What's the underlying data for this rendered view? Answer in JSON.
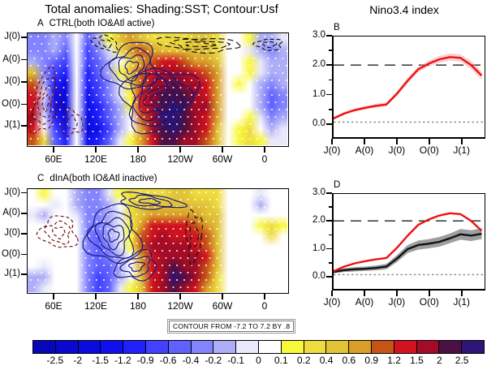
{
  "titles": {
    "main": "Total anomalies: Shading:SST; Contour:Usf",
    "right": "Nino3.4 index"
  },
  "colorbar": {
    "labels": [
      "-2.5",
      "-2",
      "-1.5",
      "-1.2",
      "-0.9",
      "-0.6",
      "-0.4",
      "-0.2",
      "-0.1",
      "0",
      "0.1",
      "0.2",
      "0.4",
      "0.6",
      "0.9",
      "1.2",
      "1.5",
      "2",
      "2.5"
    ],
    "colors": [
      "#0606bb",
      "#0808cf",
      "#0b0be0",
      "#1010ee",
      "#2020fb",
      "#4141ff",
      "#6060ff",
      "#8484ff",
      "#adadf8",
      "#e8e8fb",
      "#ffffff",
      "#f9f83b",
      "#eedc3e",
      "#e2c236",
      "#d89e27",
      "#c75417",
      "#d1131f",
      "#a30c26",
      "#4b1045",
      "#2d1476"
    ],
    "note": "CONTOUR FROM -7.2 TO 7.2 BY .8"
  },
  "chart_data": [
    {
      "id": "A",
      "type": "heatmap",
      "label": "A",
      "title": "CTRL(both IO&Atl active)",
      "x_ticks": [
        "60E",
        "120E",
        "180",
        "120W",
        "60W",
        "0"
      ],
      "y_ticks": [
        "J(0)",
        "A(0)",
        "J(0)",
        "O(0)",
        "J(1)"
      ],
      "shading_variable": "SST anomaly (shading)",
      "contour_variable": "Usf anomaly (contour)",
      "grid": [
        [
          7,
          7,
          8,
          7,
          10,
          6,
          8,
          11,
          13,
          14,
          13,
          12,
          12,
          12,
          12,
          13,
          13,
          12,
          10,
          10,
          11,
          8,
          8,
          9
        ],
        [
          7,
          7,
          8,
          6,
          10,
          5,
          7,
          9,
          12,
          14,
          15,
          14,
          13,
          13,
          13,
          13,
          13,
          12,
          10,
          10,
          9,
          8,
          7,
          8
        ],
        [
          8,
          7,
          6,
          5,
          10,
          5,
          6,
          8,
          10,
          12,
          14,
          15,
          16,
          16,
          15,
          14,
          14,
          13,
          10,
          10,
          11,
          9,
          8,
          8
        ],
        [
          13,
          7,
          5,
          4,
          10,
          4,
          6,
          8,
          11,
          13,
          15,
          16,
          17,
          17,
          17,
          16,
          15,
          14,
          10,
          10,
          11,
          9,
          8,
          8
        ],
        [
          15,
          8,
          4,
          2,
          10,
          4,
          5,
          7,
          9,
          12,
          15,
          17,
          17,
          18,
          17,
          17,
          16,
          14,
          10,
          11,
          10,
          8,
          7,
          8
        ],
        [
          16,
          9,
          3,
          2,
          10,
          3,
          5,
          7,
          9,
          11,
          16,
          17,
          18,
          18,
          18,
          17,
          16,
          14,
          10,
          10,
          10,
          8,
          6,
          7
        ],
        [
          16,
          8,
          3,
          1,
          10,
          3,
          4,
          6,
          8,
          11,
          16,
          17,
          18,
          19,
          18,
          17,
          17,
          14,
          10,
          10,
          10,
          8,
          6,
          7
        ],
        [
          17,
          9,
          4,
          2,
          10,
          2,
          4,
          6,
          8,
          10,
          15,
          17,
          19,
          19,
          18,
          17,
          16,
          14,
          10,
          10,
          11,
          9,
          7,
          8
        ],
        [
          16,
          10,
          5,
          3,
          10,
          2,
          3,
          5,
          8,
          10,
          14,
          17,
          18,
          19,
          18,
          17,
          16,
          13,
          10,
          11,
          12,
          10,
          8,
          9
        ],
        [
          15,
          12,
          6,
          4,
          10,
          3,
          4,
          6,
          9,
          11,
          14,
          16,
          18,
          18,
          17,
          17,
          15,
          13,
          10,
          11,
          12,
          11,
          9,
          9
        ]
      ],
      "contours": [
        {
          "cx": 0.4,
          "cy": 0.3,
          "rx": 0.1,
          "ry": 0.2,
          "n": 4,
          "color": "#15157e",
          "dash": null,
          "rot": -0.5
        },
        {
          "cx": 0.5,
          "cy": 0.58,
          "rx": 0.14,
          "ry": 0.27,
          "n": 6,
          "color": "#15157e",
          "dash": null,
          "rot": -0.45
        },
        {
          "cx": 0.07,
          "cy": 0.62,
          "rx": 0.05,
          "ry": 0.28,
          "n": 4,
          "color": "#6e0d0d",
          "dash": [
            4,
            3
          ],
          "rot": 0.2
        },
        {
          "cx": 0.17,
          "cy": 0.8,
          "rx": 0.04,
          "ry": 0.11,
          "n": 2,
          "color": "#6e0d0d",
          "dash": [
            4,
            3
          ],
          "rot": 0
        },
        {
          "cx": 0.66,
          "cy": 0.1,
          "rx": 0.16,
          "ry": 0.06,
          "n": 3,
          "color": "#111111",
          "dash": [
            7,
            4
          ],
          "rot": 0.05
        },
        {
          "cx": 0.93,
          "cy": 0.1,
          "rx": 0.05,
          "ry": 0.05,
          "n": 2,
          "color": "#111111",
          "dash": [
            5,
            3
          ],
          "rot": 0
        },
        {
          "cx": 0.3,
          "cy": 0.09,
          "rx": 0.05,
          "ry": 0.06,
          "n": 2,
          "color": "#111111",
          "dash": [
            5,
            3
          ],
          "rot": 0.3
        }
      ]
    },
    {
      "id": "B",
      "type": "line",
      "label": "B",
      "ylim": [
        -0.5,
        3.0
      ],
      "ytick_vals": [
        0,
        1,
        2,
        3
      ],
      "ytick_labels": [
        "0.0",
        "1.0",
        "2.0",
        "3.0"
      ],
      "x_ticks": [
        "J(0)",
        "A(0)",
        "J(0)",
        "O(0)",
        "J(1)"
      ],
      "xtick_months": [
        0,
        3,
        6,
        9,
        12
      ],
      "x_max": 14.2,
      "ref_lines": [
        {
          "v": 2.0,
          "style": "longdash",
          "color": "#222222"
        },
        {
          "v": 0.0,
          "style": "dot",
          "color": "#888888"
        }
      ],
      "series": [
        {
          "name": "CTRL",
          "color": "#ee1111",
          "band_color": "rgba(250,150,160,0.45)",
          "width": 2.4,
          "values": [
            0.13,
            0.3,
            0.42,
            0.5,
            0.57,
            0.62,
            1.0,
            1.45,
            1.85,
            2.05,
            2.2,
            2.28,
            2.25,
            2.0,
            1.63
          ],
          "band": [
            0.05,
            0.05,
            0.06,
            0.06,
            0.07,
            0.07,
            0.08,
            0.1,
            0.1,
            0.1,
            0.12,
            0.13,
            0.13,
            0.14,
            0.15
          ]
        }
      ]
    },
    {
      "id": "C",
      "type": "heatmap",
      "label": "C",
      "title": "dInA(both IO&Atl inactive)",
      "x_ticks": [
        "60E",
        "120E",
        "180",
        "120W",
        "60W",
        "0"
      ],
      "y_ticks": [
        "J(0)",
        "A(0)",
        "J(0)",
        "O(0)",
        "J(1)"
      ],
      "shading_variable": "SST anomaly (shading)",
      "contour_variable": "Usf anomaly (contour)",
      "grid": [
        [
          10,
          11,
          10,
          10,
          8,
          7,
          7,
          9,
          11,
          12,
          12,
          12,
          12,
          13,
          13,
          12,
          12,
          12,
          10,
          10,
          10,
          9,
          10,
          10
        ],
        [
          10,
          10,
          9,
          10,
          8,
          7,
          7,
          8,
          10,
          12,
          13,
          13,
          13,
          13,
          13,
          13,
          13,
          12,
          10,
          10,
          10,
          8,
          10,
          10
        ],
        [
          9,
          8,
          10,
          10,
          9,
          7,
          7,
          8,
          9,
          12,
          13,
          14,
          14,
          14,
          14,
          14,
          13,
          13,
          10,
          10,
          10,
          10,
          10,
          10
        ],
        [
          10,
          10,
          10,
          10,
          10,
          7,
          7,
          8,
          9,
          11,
          14,
          16,
          16,
          16,
          16,
          15,
          14,
          13,
          10,
          10,
          10,
          11,
          12,
          11
        ],
        [
          10,
          10,
          10,
          10,
          10,
          7,
          6,
          8,
          9,
          11,
          15,
          16,
          17,
          16,
          16,
          16,
          15,
          13,
          10,
          10,
          10,
          10,
          12,
          10
        ],
        [
          10,
          10,
          10,
          10,
          10,
          7,
          6,
          7,
          9,
          11,
          15,
          17,
          17,
          17,
          17,
          16,
          15,
          13,
          10,
          10,
          10,
          10,
          10,
          10
        ],
        [
          10,
          10,
          10,
          10,
          10,
          7,
          6,
          7,
          8,
          10,
          14,
          16,
          17,
          17,
          17,
          17,
          16,
          13,
          10,
          10,
          10,
          10,
          10,
          10
        ],
        [
          10,
          9,
          10,
          10,
          10,
          7,
          6,
          6,
          8,
          10,
          14,
          16,
          17,
          18,
          17,
          17,
          15,
          13,
          10,
          10,
          10,
          10,
          10,
          10
        ],
        [
          8,
          8,
          10,
          10,
          10,
          7,
          5,
          6,
          8,
          10,
          13,
          16,
          17,
          19,
          18,
          17,
          15,
          12,
          10,
          10,
          10,
          10,
          10,
          10
        ],
        [
          8,
          9,
          10,
          10,
          10,
          7,
          5,
          6,
          9,
          11,
          13,
          16,
          17,
          18,
          17,
          16,
          14,
          12,
          10,
          10,
          10,
          10,
          10,
          10
        ]
      ],
      "contours": [
        {
          "cx": 0.33,
          "cy": 0.45,
          "rx": 0.1,
          "ry": 0.28,
          "n": 5,
          "color": "#15157e",
          "dash": null,
          "rot": -0.3
        },
        {
          "cx": 0.42,
          "cy": 0.75,
          "rx": 0.08,
          "ry": 0.13,
          "n": 3,
          "color": "#15157e",
          "dash": null,
          "rot": -0.2
        },
        {
          "cx": 0.12,
          "cy": 0.42,
          "rx": 0.07,
          "ry": 0.15,
          "n": 3,
          "color": "#6e0d0d",
          "dash": [
            4,
            3
          ],
          "rot": 0.3
        },
        {
          "cx": 0.47,
          "cy": 0.12,
          "rx": 0.12,
          "ry": 0.07,
          "n": 3,
          "color": "#15157e",
          "dash": null,
          "rot": 0.1
        },
        {
          "cx": 0.64,
          "cy": 0.45,
          "rx": 0.03,
          "ry": 0.24,
          "n": 2,
          "color": "#111111",
          "dash": [
            6,
            4
          ],
          "rot": 0
        }
      ]
    },
    {
      "id": "D",
      "type": "line",
      "label": "D",
      "ylim": [
        -0.5,
        3.0
      ],
      "ytick_vals": [
        0,
        1,
        2,
        3
      ],
      "ytick_labels": [
        "0.0",
        "1.0",
        "2.0",
        "3.0"
      ],
      "x_ticks": [
        "J(0)",
        "A(0)",
        "J(0)",
        "O(0)",
        "J(1)"
      ],
      "xtick_months": [
        0,
        3,
        6,
        9,
        12
      ],
      "x_max": 14.2,
      "ref_lines": [
        {
          "v": 2.0,
          "style": "longdash",
          "color": "#222222"
        },
        {
          "v": 0.0,
          "style": "dot",
          "color": "#888888"
        }
      ],
      "series": [
        {
          "name": "dInA",
          "color": "#111111",
          "band_color": "rgba(125,125,125,0.75)",
          "width": 2.4,
          "values": [
            0.1,
            0.17,
            0.2,
            0.22,
            0.25,
            0.3,
            0.6,
            0.95,
            1.1,
            1.15,
            1.22,
            1.35,
            1.5,
            1.45,
            1.52
          ],
          "band": [
            0.05,
            0.07,
            0.08,
            0.08,
            0.09,
            0.1,
            0.13,
            0.15,
            0.17,
            0.17,
            0.18,
            0.18,
            0.2,
            0.2,
            0.2
          ]
        },
        {
          "name": "CTRL",
          "color": "#ee1111",
          "band_color": null,
          "width": 2.4,
          "values": [
            0.13,
            0.3,
            0.42,
            0.5,
            0.57,
            0.62,
            1.0,
            1.45,
            1.85,
            2.05,
            2.2,
            2.28,
            2.25,
            2.0,
            1.63
          ],
          "band": null
        }
      ]
    }
  ]
}
